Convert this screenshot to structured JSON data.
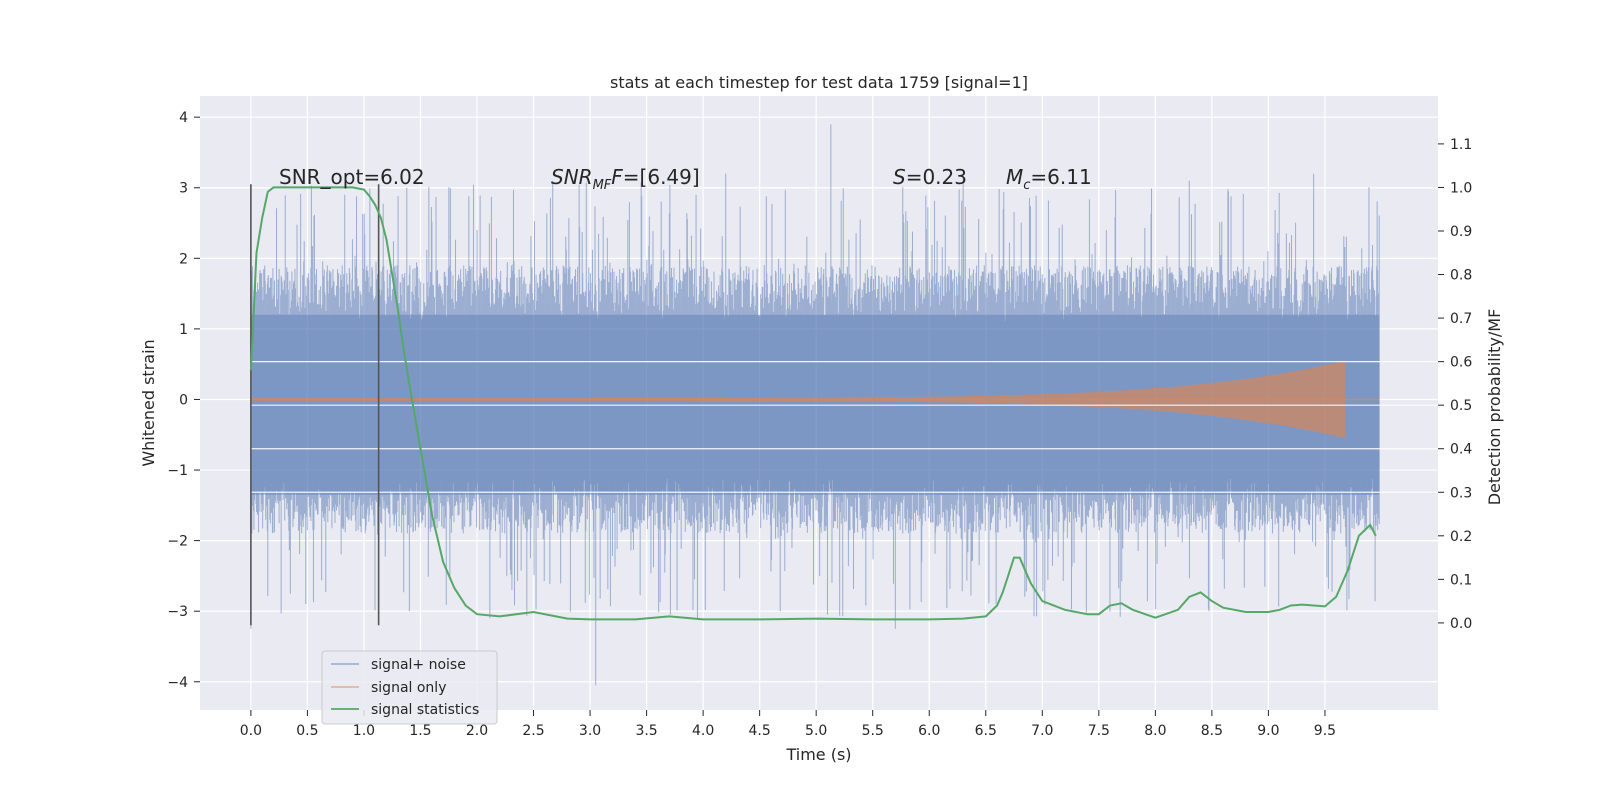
{
  "chart_data": {
    "type": "line",
    "title": "stats at each timestep for test data 1759 [signal=1]",
    "xlabel": "Time (s)",
    "ylabel": "Whitened strain",
    "y2label": "Detection probability/MF",
    "xlim": [
      -0.45,
      10.5
    ],
    "ylim": [
      -4.4,
      4.3
    ],
    "y2lim": [
      -0.2,
      1.21
    ],
    "xticks": [
      "0.0",
      "0.5",
      "1.0",
      "1.5",
      "2.0",
      "2.5",
      "3.0",
      "3.5",
      "4.0",
      "4.5",
      "5.0",
      "5.5",
      "6.0",
      "6.5",
      "7.0",
      "7.5",
      "8.0",
      "8.5",
      "9.0",
      "9.5"
    ],
    "yticks": [
      "4",
      "3",
      "2",
      "1",
      "0",
      "−1",
      "−2",
      "−3",
      "−4"
    ],
    "y2ticks": [
      "1.1",
      "1.0",
      "0.9",
      "0.8",
      "0.7",
      "0.6",
      "0.5",
      "0.4",
      "0.3",
      "0.2",
      "0.1",
      "0.0"
    ],
    "grid": true,
    "legend_position": "lower-left",
    "colors": {
      "background": "#eaeaf2",
      "noise": "#4c72b0",
      "signal": "#dd8452",
      "stats": "#55a868",
      "marker": "#555555"
    },
    "legend": [
      "signal+ noise",
      "signal only",
      "signal statistics"
    ],
    "annotations": {
      "snr_opt": "SNR_opt=6.02",
      "snr_mf_sym": "SNR",
      "snr_mf_sub": "MF",
      "snr_mf_sym2": "F",
      "snr_mf_val": "=[6.49]",
      "s_sym": "S",
      "s_val": "=0.23",
      "mc_sym": "M",
      "mc_sub": "c",
      "mc_val": "=6.11"
    },
    "marker_lines_x": [
      0.0,
      1.13
    ],
    "series": [
      {
        "name": "signal+ noise",
        "x_range": [
          0.0,
          9.98
        ],
        "envelope_typical": [
          -1.5,
          1.5
        ],
        "peak_max": 3.9,
        "peak_min": -4.05
      },
      {
        "name": "signal only",
        "x_range": [
          0.0,
          9.68
        ],
        "envelope_start": 0.02,
        "envelope_end": 0.55
      },
      {
        "name": "signal statistics",
        "axis": "right",
        "x": [
          0.0,
          0.05,
          0.1,
          0.15,
          0.2,
          0.3,
          0.5,
          0.7,
          0.9,
          1.0,
          1.05,
          1.1,
          1.15,
          1.2,
          1.25,
          1.3,
          1.35,
          1.4,
          1.5,
          1.6,
          1.7,
          1.8,
          1.9,
          2.0,
          2.2,
          2.5,
          2.8,
          3.0,
          3.4,
          3.7,
          4.0,
          4.5,
          5.0,
          5.5,
          6.0,
          6.3,
          6.5,
          6.6,
          6.65,
          6.7,
          6.75,
          6.8,
          6.85,
          6.9,
          7.0,
          7.2,
          7.4,
          7.5,
          7.6,
          7.7,
          7.8,
          8.0,
          8.2,
          8.3,
          8.4,
          8.5,
          8.6,
          8.8,
          9.0,
          9.1,
          9.2,
          9.3,
          9.4,
          9.5,
          9.6,
          9.7,
          9.8,
          9.9,
          9.95
        ],
        "y": [
          0.58,
          0.85,
          0.93,
          0.99,
          1.0,
          1.0,
          1.0,
          1.0,
          1.0,
          0.995,
          0.98,
          0.96,
          0.93,
          0.88,
          0.8,
          0.72,
          0.63,
          0.55,
          0.4,
          0.25,
          0.14,
          0.08,
          0.04,
          0.02,
          0.015,
          0.025,
          0.01,
          0.008,
          0.008,
          0.015,
          0.008,
          0.008,
          0.01,
          0.008,
          0.008,
          0.01,
          0.015,
          0.04,
          0.07,
          0.11,
          0.15,
          0.15,
          0.12,
          0.09,
          0.05,
          0.03,
          0.02,
          0.02,
          0.04,
          0.045,
          0.03,
          0.012,
          0.03,
          0.06,
          0.07,
          0.05,
          0.035,
          0.025,
          0.025,
          0.03,
          0.04,
          0.042,
          0.04,
          0.038,
          0.06,
          0.12,
          0.2,
          0.225,
          0.2
        ]
      }
    ]
  }
}
